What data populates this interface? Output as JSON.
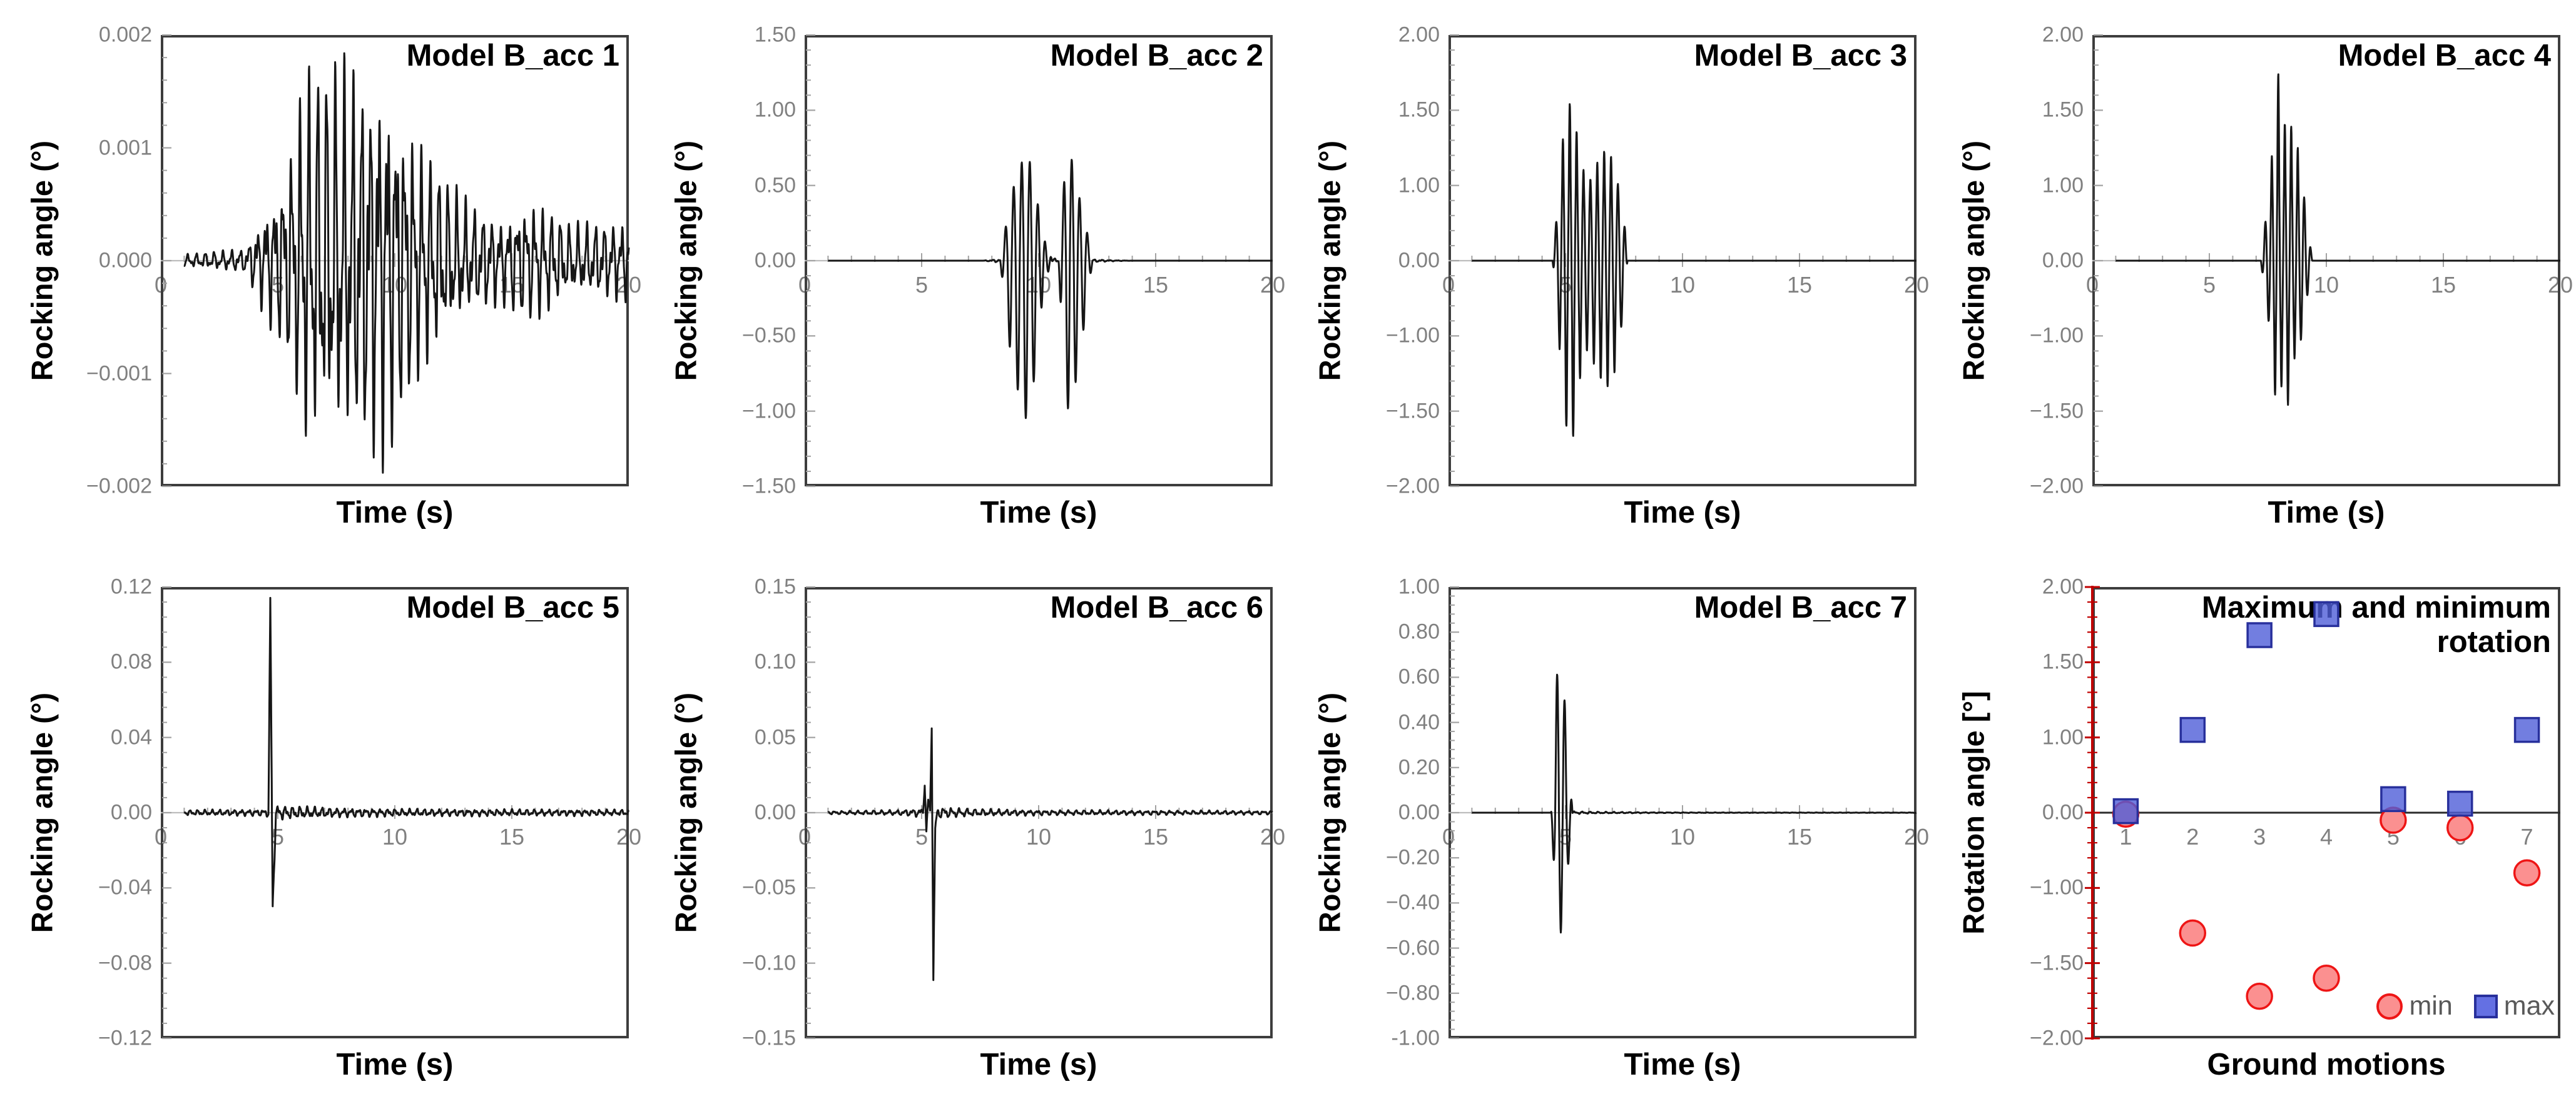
{
  "figure": {
    "background": "#ffffff",
    "layout": "2 rows x 4 columns",
    "colors": {
      "waveform": "#161616",
      "frame": "#3d3d3d",
      "zero_line_gray": "#bdbdbd",
      "tick_gray": "#a3a3a3",
      "label_gray": "#808080",
      "scatter_axis_red": "#c00000",
      "scatter_zero_black": "#2b2b2b",
      "min_marker_fill": "#fb9090",
      "min_marker_stroke": "#ee1515",
      "max_marker_fill": "#4f5ed8",
      "max_marker_stroke": "#28309c",
      "legend_text": "#595959"
    }
  },
  "chart_data": [
    {
      "type": "line",
      "title": "Model B_acc 1",
      "ylabel": "Rocking angle (°)",
      "xlabel": "Time (s)",
      "xlim": [
        0,
        20
      ],
      "ylim": [
        -0.002,
        0.002
      ],
      "xtick_labels": [
        "0",
        "5",
        "10",
        "15",
        "20"
      ],
      "xtick_values": [
        0,
        5,
        10,
        15,
        20
      ],
      "ytick_labels": [
        "0.002",
        "0.001",
        "0.000",
        "−0.001",
        "−0.002"
      ],
      "ytick_values": [
        0.002,
        0.001,
        0,
        -0.001,
        -0.002
      ],
      "extremes": {
        "max": 0.0017,
        "min": -0.0017
      },
      "signal": {
        "noise": {
          "f": 2.7,
          "phases": [
            0.7,
            2.1,
            4.4
          ],
          "env": [
            [
              1,
              6e-05
            ],
            [
              3.6,
              0.00012
            ],
            [
              4.4,
              0.0005
            ],
            [
              5.3,
              0.0009
            ],
            [
              6.2,
              0.0019
            ],
            [
              9.6,
              0.0019
            ],
            [
              10.8,
              0.0013
            ],
            [
              12.2,
              0.0008
            ],
            [
              13.2,
              0.00055
            ],
            [
              14.6,
              0.00042
            ],
            [
              15.6,
              0.0006
            ],
            [
              16.4,
              0.00055
            ],
            [
              17.5,
              0.00035
            ],
            [
              20,
              0.0004
            ]
          ]
        }
      }
    },
    {
      "type": "line",
      "title": "Model B_acc 2",
      "ylabel": "Rocking angle (°)",
      "xlabel": "Time (s)",
      "xlim": [
        0,
        20
      ],
      "ylim": [
        -1.5,
        1.5
      ],
      "xtick_labels": [
        "0",
        "5",
        "10",
        "15",
        "20"
      ],
      "xtick_values": [
        0,
        5,
        10,
        15,
        20
      ],
      "ytick_labels": [
        "1.50",
        "1.00",
        "0.50",
        "0.00",
        "−0.50",
        "−1.00",
        "−1.50"
      ],
      "ytick_values": [
        1.5,
        1.0,
        0.5,
        0,
        -0.5,
        -1.0,
        -1.5
      ],
      "extremes": {
        "max": 0.72,
        "min": -1.07
      },
      "signal": {
        "noise": {
          "f": 3.0,
          "phases": [
            1.1,
            2.9,
            0.3
          ],
          "env": [
            [
              7.6,
              0
            ],
            [
              8.2,
              0.012
            ],
            [
              10.2,
              0.03
            ],
            [
              10.8,
              0.015
            ],
            [
              12.5,
              0.01
            ],
            [
              13.2,
              0.004
            ],
            [
              14,
              0
            ],
            [
              20,
              0
            ]
          ]
        },
        "bursts": [
          {
            "f": 2.9,
            "t0": 8.5,
            "asym": 1.5,
            "env": [
              [
                8.35,
                0
              ],
              [
                8.8,
                0.42
              ],
              [
                9.15,
                0.6
              ],
              [
                9.5,
                0.72
              ],
              [
                9.85,
                0.5
              ],
              [
                10.1,
                0.2
              ],
              [
                10.35,
                0.05
              ],
              [
                10.5,
                0
              ]
            ]
          },
          {
            "f": 3.2,
            "t0": 10.15,
            "asym": 1.2,
            "env": [
              [
                10.0,
                0
              ],
              [
                10.2,
                0.1
              ],
              [
                10.45,
                0.05
              ],
              [
                10.65,
                0
              ]
            ]
          },
          {
            "f": 3.0,
            "t0": 11.0,
            "asym": 1.5,
            "env": [
              [
                10.85,
                0
              ],
              [
                11.1,
                0.55
              ],
              [
                11.35,
                0.72
              ],
              [
                11.65,
                0.48
              ],
              [
                11.95,
                0.28
              ],
              [
                12.3,
                0
              ]
            ]
          }
        ]
      }
    },
    {
      "type": "line",
      "title": "Model B_acc 3",
      "ylabel": "Rocking angle (°)",
      "xlabel": "Time (s)",
      "xlim": [
        0,
        20
      ],
      "ylim": [
        -2,
        2
      ],
      "xtick_labels": [
        "0",
        "5",
        "10",
        "15",
        "20"
      ],
      "xtick_values": [
        0,
        5,
        10,
        15,
        20
      ],
      "ytick_labels": [
        "2.00",
        "1.50",
        "1.00",
        "0.00",
        "−1.00",
        "−1.50",
        "−2.00"
      ],
      "ytick_values": [
        2,
        1.5,
        1,
        0,
        -1,
        -1.5,
        -2
      ],
      "extremes": {
        "max": 1.58,
        "min": -1.71
      },
      "signal": {
        "bursts": [
          {
            "f": 3.4,
            "t0": 4.52,
            "asym": 1.08,
            "env": [
              [
                4.45,
                0
              ],
              [
                4.8,
                1.2
              ],
              [
                5.05,
                1.5
              ],
              [
                5.3,
                1.58
              ],
              [
                5.6,
                1.2
              ],
              [
                5.95,
                1.0
              ],
              [
                6.35,
                1.15
              ],
              [
                6.75,
                1.25
              ],
              [
                7.1,
                1.15
              ],
              [
                7.35,
                0.9
              ],
              [
                7.55,
                0.4
              ],
              [
                7.65,
                0
              ]
            ]
          }
        ]
      }
    },
    {
      "type": "line",
      "title": "Model B_acc 4",
      "ylabel": "Rocking angle (°)",
      "xlabel": "Time (s)",
      "xlim": [
        0,
        20
      ],
      "ylim": [
        -2,
        2
      ],
      "xtick_labels": [
        "0",
        "5",
        "10",
        "15",
        "20"
      ],
      "xtick_values": [
        0,
        5,
        10,
        15,
        20
      ],
      "ytick_labels": [
        "2.00",
        "1.50",
        "1.00",
        "0.00",
        "−1.00",
        "−1.50",
        "−2.00"
      ],
      "ytick_values": [
        2,
        1.5,
        1,
        0,
        -1,
        -1.5,
        -2
      ],
      "extremes": {
        "max": 1.75,
        "min": -1.61
      },
      "signal": {
        "bursts": [
          {
            "f": 3.6,
            "t0": 7.32,
            "asym": 0.92,
            "env": [
              [
                7.2,
                0
              ],
              [
                7.5,
                0.8
              ],
              [
                7.8,
                1.5
              ],
              [
                7.95,
                1.75
              ],
              [
                8.15,
                1.3
              ],
              [
                8.35,
                1.6
              ],
              [
                8.6,
                1.25
              ],
              [
                8.85,
                1.25
              ],
              [
                9.05,
                0.85
              ],
              [
                9.25,
                0.35
              ],
              [
                9.4,
                0
              ]
            ]
          }
        ]
      }
    },
    {
      "type": "line",
      "title": "Model B_acc 5",
      "ylabel": "Rocking angle (°)",
      "xlabel": "Time (s)",
      "xlim": [
        0,
        20
      ],
      "ylim": [
        -0.12,
        0.12
      ],
      "xtick_labels": [
        "0",
        "5",
        "10",
        "15",
        "20"
      ],
      "xtick_values": [
        0,
        5,
        10,
        15,
        20
      ],
      "ytick_labels": [
        "0.12",
        "0.08",
        "0.04",
        "0.00",
        "−0.04",
        "−0.08",
        "−0.12"
      ],
      "ytick_values": [
        0.12,
        0.08,
        0.04,
        0,
        -0.04,
        -0.08,
        -0.12
      ],
      "extremes": {
        "max": 0.113,
        "min": -0.05
      },
      "signal": {
        "noise": {
          "f": 3.2,
          "phases": [
            1.3,
            3.8,
            0.2
          ],
          "env": [
            [
              1,
              0.0016
            ],
            [
              4.4,
              0.002
            ],
            [
              5.0,
              0.0042
            ],
            [
              7.5,
              0.0028
            ],
            [
              10.5,
              0.0022
            ],
            [
              20,
              0.0018
            ]
          ]
        },
        "path": [
          [
            4.6,
            0
          ],
          [
            4.68,
            0.113
          ],
          [
            4.78,
            -0.05
          ],
          [
            4.92,
            0
          ]
        ]
      }
    },
    {
      "type": "line",
      "title": "Model B_acc 6",
      "ylabel": "Rocking angle (°)",
      "xlabel": "Time (s)",
      "xlim": [
        0,
        20
      ],
      "ylim": [
        -0.15,
        0.15
      ],
      "xtick_labels": [
        "0",
        "5",
        "10",
        "15",
        "20"
      ],
      "xtick_values": [
        0,
        5,
        10,
        15,
        20
      ],
      "ytick_labels": [
        "0.15",
        "0.10",
        "0.05",
        "0.00",
        "−0.05",
        "−0.10",
        "−0.15"
      ],
      "ytick_values": [
        0.15,
        0.1,
        0.05,
        0,
        -0.05,
        -0.1,
        -0.15
      ],
      "extremes": {
        "max": 0.058,
        "min": -0.11
      },
      "signal": {
        "noise": {
          "f": 3.0,
          "phases": [
            2.5,
            0.9,
            5.1
          ],
          "env": [
            [
              1,
              0.0012
            ],
            [
              4.0,
              0.002
            ],
            [
              5.7,
              0.0042
            ],
            [
              7.2,
              0.0028
            ],
            [
              10,
              0.002
            ],
            [
              20,
              0.0014
            ]
          ]
        },
        "path": [
          [
            5.06,
            0
          ],
          [
            5.13,
            0.021
          ],
          [
            5.2,
            -0.013
          ],
          [
            5.28,
            0.008
          ],
          [
            5.36,
            0
          ],
          [
            5.43,
            0.058
          ],
          [
            5.5,
            -0.11
          ],
          [
            5.58,
            -0.012
          ],
          [
            5.66,
            0
          ]
        ]
      }
    },
    {
      "type": "line",
      "title": "Model B_acc 7",
      "ylabel": "Rocking angle (°)",
      "xlabel": "Time (s)",
      "xlim": [
        0,
        20
      ],
      "ylim": [
        -1,
        1
      ],
      "xtick_labels": [
        "0",
        "5",
        "10",
        "15",
        "20"
      ],
      "xtick_values": [
        0,
        5,
        10,
        15,
        20
      ],
      "ytick_labels": [
        "1.00",
        "0.80",
        "0.60",
        "0.40",
        "0.20",
        "0.00",
        "−0.20",
        "−0.40",
        "−0.60",
        "−0.80",
        "-1.00"
      ],
      "ytick_values": [
        1,
        0.8,
        0.6,
        0.4,
        0.2,
        0,
        -0.2,
        -0.4,
        -0.6,
        -0.8,
        -1
      ],
      "extremes": {
        "max": 0.7,
        "min": -0.53
      },
      "signal": {
        "noise": {
          "f": 3.0,
          "phases": [
            0.4,
            1.8,
            3.0
          ],
          "env": [
            [
              4.45,
              0
            ],
            [
              5.3,
              0.007
            ],
            [
              6.5,
              0.0045
            ],
            [
              9,
              0.002
            ],
            [
              12,
              0.0012
            ],
            [
              20,
              0.0009
            ]
          ]
        },
        "bursts": [
          {
            "f": 3.1,
            "t0": 4.56,
            "asym": 0.76,
            "env": [
              [
                4.38,
                0
              ],
              [
                4.62,
                0.6
              ],
              [
                4.8,
                0.7
              ],
              [
                5.0,
                0.45
              ],
              [
                5.12,
                0.3
              ],
              [
                5.3,
                0
              ]
            ]
          }
        ]
      }
    },
    {
      "type": "scatter",
      "title": "Maximum and minimum rotation",
      "title_lines": [
        "Maximum and minimum",
        "rotation"
      ],
      "ylabel": "Rotation angle [°]",
      "xlabel": "Ground motions",
      "categories": [
        "1",
        "2",
        "3",
        "4",
        "5",
        "6",
        "7"
      ],
      "ytick_labels": [
        "2.00",
        "1.50",
        "1.00",
        "0.00",
        "−1.00",
        "−1.50",
        "−2.00"
      ],
      "ytick_values": [
        2,
        1.5,
        1,
        0,
        -1,
        -1.5,
        -2
      ],
      "axis_color": "#c00000",
      "legend_position": "bottom-right",
      "series": [
        {
          "name": "min",
          "marker": "circle",
          "fill": "#fb9090",
          "stroke": "#ee1515",
          "values": [
            -0.02,
            -1.3,
            -1.72,
            -1.6,
            -0.1,
            -0.2,
            -0.8
          ]
        },
        {
          "name": "max",
          "marker": "square",
          "fill": "#4f5ed8",
          "stroke": "#28309c",
          "values": [
            0.02,
            1.05,
            1.68,
            1.82,
            0.18,
            0.12,
            1.05
          ]
        }
      ]
    }
  ]
}
